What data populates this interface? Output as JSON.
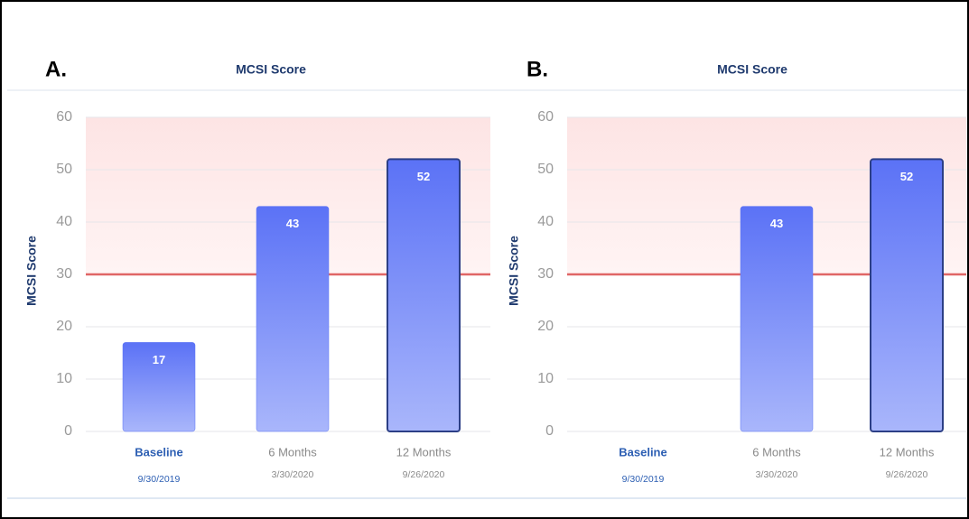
{
  "chart_data": [
    {
      "type": "bar",
      "panel_label": "A.",
      "title": "MCSI Score",
      "y_label": "MCSI Score",
      "categories": [
        "Baseline",
        "6 Months",
        "12 Months"
      ],
      "dates": [
        "9/30/2019",
        "3/30/2020",
        "9/26/2020"
      ],
      "values": [
        17,
        43,
        52
      ],
      "color": "#5b74f5",
      "ylim": [
        0,
        60
      ],
      "yticks": [
        0,
        10,
        20,
        30,
        40,
        50,
        60
      ],
      "grid": true,
      "threshold": 30,
      "threshold_color": "#e06666",
      "highlight_index": 2
    },
    {
      "type": "bar",
      "panel_label": "B.",
      "title": "MCSI Score",
      "y_label": "MCSI Score",
      "categories": [
        "Baseline",
        "6 Months",
        "12 Months"
      ],
      "dates": [
        "9/30/2019",
        "3/30/2020",
        "9/26/2020"
      ],
      "values": [
        null,
        43,
        52
      ],
      "color": "#5b74f5",
      "ylim": [
        0,
        60
      ],
      "yticks": [
        0,
        10,
        20,
        30,
        40,
        50,
        60
      ],
      "grid": true,
      "threshold": 30,
      "threshold_color": "#e06666",
      "highlight_index": 2
    }
  ]
}
